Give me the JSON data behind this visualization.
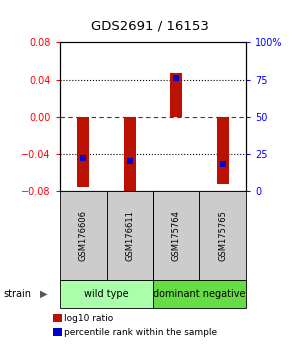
{
  "title": "GDS2691 / 16153",
  "samples": [
    "GSM176606",
    "GSM176611",
    "GSM175764",
    "GSM175765"
  ],
  "log10_ratios": [
    -0.075,
    -0.082,
    0.047,
    -0.072
  ],
  "percentile_ranks": [
    22,
    20,
    76,
    18
  ],
  "ylim_left": [
    -0.08,
    0.08
  ],
  "ylim_right": [
    0,
    100
  ],
  "yticks_left": [
    -0.08,
    -0.04,
    0,
    0.04,
    0.08
  ],
  "yticks_right": [
    0,
    25,
    50,
    75,
    100
  ],
  "ytick_labels_right": [
    "0",
    "25",
    "50",
    "75",
    "100%"
  ],
  "bar_color": "#bb1100",
  "blue_color": "#0000cc",
  "red_dashed_color": "#cc0000",
  "groups": [
    {
      "label": "wild type",
      "samples": [
        0,
        1
      ],
      "color": "#aaffaa"
    },
    {
      "label": "dominant negative",
      "samples": [
        2,
        3
      ],
      "color": "#66dd44"
    }
  ],
  "strain_label": "strain",
  "legend_items": [
    {
      "color": "#bb1100",
      "label": "log10 ratio"
    },
    {
      "color": "#0000cc",
      "label": "percentile rank within the sample"
    }
  ],
  "bar_width": 0.25
}
